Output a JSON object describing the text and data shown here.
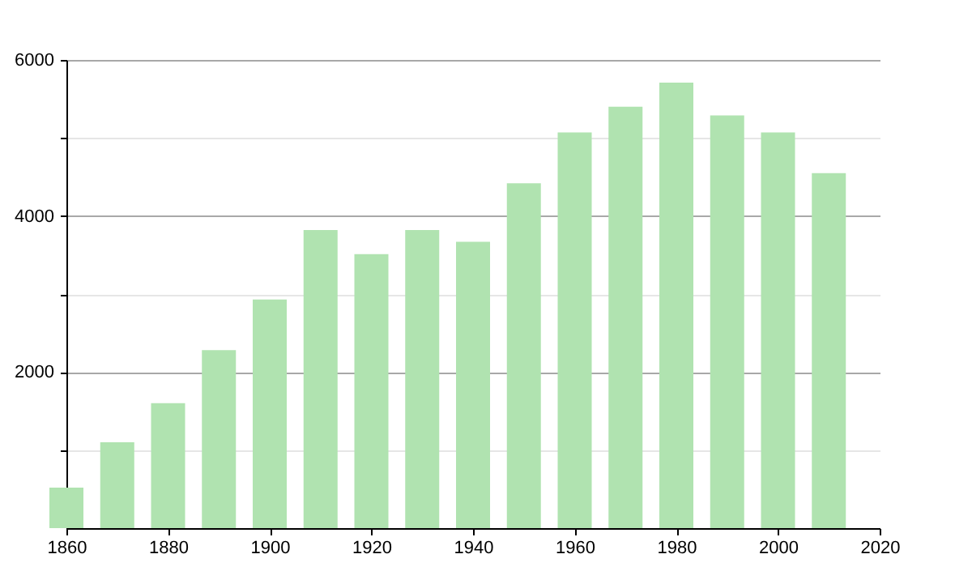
{
  "chart_data": {
    "type": "bar",
    "x": [
      1860,
      1870,
      1880,
      1890,
      1900,
      1910,
      1920,
      1930,
      1940,
      1950,
      1960,
      1970,
      1980,
      1990,
      2000,
      2010
    ],
    "values": [
      520,
      1100,
      1600,
      2280,
      2930,
      3820,
      3510,
      3820,
      3670,
      4420,
      5070,
      5400,
      5710,
      5290,
      5070,
      4550
    ],
    "color": "#b0e3b0",
    "xlim": [
      1860,
      2020
    ],
    "xticks": [
      1860,
      1880,
      1900,
      1920,
      1940,
      1960,
      1980,
      2000,
      2020
    ],
    "ylim": [
      0,
      6000
    ],
    "yticks": [
      {
        "value": 1000,
        "label": null
      },
      2000,
      {
        "value": 3000,
        "label": null
      },
      4000,
      {
        "value": 5000,
        "label": null
      },
      6000
    ],
    "grid": "y"
  }
}
